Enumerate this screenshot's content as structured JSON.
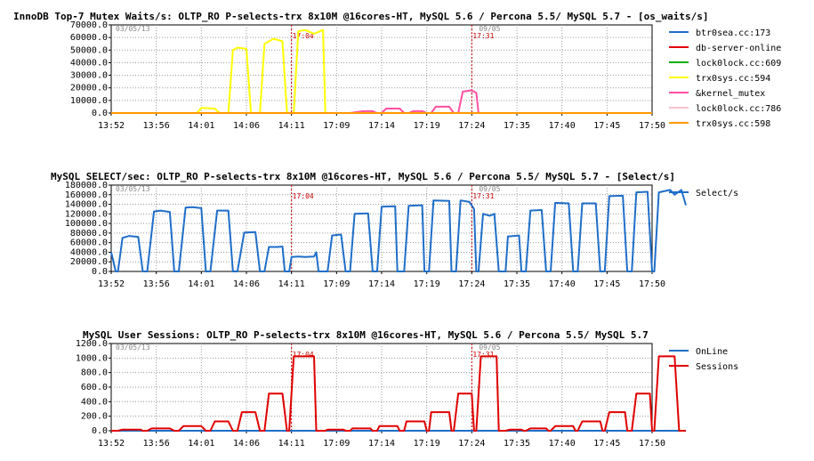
{
  "chart_data": [
    {
      "type": "line",
      "title": "InnoDB Top-7 Mutex Waits/s: OLTP_RO P-selects-trx 8x10M @16cores-HT, MySQL 5.6 / Percona 5.5/ MySQL 5.7 - [os_waits/s]",
      "date_start": "03/05/13",
      "date_end": "09/05",
      "ylim": [
        0,
        70000
      ],
      "yticks": [
        "70000.0",
        "60000.0",
        "50000.0",
        "40000.0",
        "30000.0",
        "20000.0",
        "10000.0",
        "0.0"
      ],
      "xticks": [
        "13:52",
        "13:56",
        "14:01",
        "14:06",
        "14:11",
        "17:09",
        "17:14",
        "17:19",
        "17:24",
        "17:35",
        "17:40",
        "17:45",
        "17:50"
      ],
      "markers": [
        {
          "label": "17:04",
          "at": 4
        },
        {
          "label": "17:31",
          "at": 8
        }
      ],
      "series": [
        {
          "name": "btr0sea.cc:173",
          "color": "#1f6ec9",
          "values": []
        },
        {
          "name": "db-server-online",
          "color": "#e00000",
          "values": []
        },
        {
          "name": "lock0lock.cc:609",
          "color": "#00b000",
          "values": []
        },
        {
          "name": "trx0sys.cc:594",
          "color": "#ffff00",
          "values": [
            [
              0,
              0
            ],
            [
              1.9,
              0
            ],
            [
              2.0,
              4000
            ],
            [
              2.3,
              3500
            ],
            [
              2.4,
              0
            ],
            [
              2.6,
              0
            ],
            [
              2.7,
              50000
            ],
            [
              2.8,
              52000
            ],
            [
              3.0,
              51000
            ],
            [
              3.1,
              0
            ],
            [
              3.3,
              0
            ],
            [
              3.4,
              55000
            ],
            [
              3.6,
              59000
            ],
            [
              3.8,
              57000
            ],
            [
              3.9,
              0
            ],
            [
              4.05,
              0
            ],
            [
              4.15,
              65000
            ],
            [
              4.3,
              66000
            ],
            [
              4.5,
              63000
            ],
            [
              4.7,
              66000
            ],
            [
              4.75,
              0
            ],
            [
              4.9,
              0
            ]
          ]
        },
        {
          "name": "&kernel_mutex",
          "color": "#ff50a0",
          "values": [
            [
              5.3,
              0
            ],
            [
              5.6,
              1500
            ],
            [
              5.8,
              1500
            ],
            [
              5.9,
              0
            ],
            [
              6.0,
              0
            ],
            [
              6.1,
              3500
            ],
            [
              6.4,
              3500
            ],
            [
              6.5,
              0
            ],
            [
              6.6,
              0
            ],
            [
              6.7,
              1500
            ],
            [
              6.9,
              1500
            ],
            [
              7.0,
              0
            ],
            [
              7.1,
              0
            ],
            [
              7.2,
              5000
            ],
            [
              7.5,
              5000
            ],
            [
              7.6,
              0
            ],
            [
              7.7,
              0
            ],
            [
              7.8,
              17000
            ],
            [
              8.0,
              18000
            ],
            [
              8.1,
              16000
            ],
            [
              8.15,
              0
            ]
          ]
        },
        {
          "name": "lock0lock.cc:786",
          "color": "#ffc0d0",
          "values": []
        },
        {
          "name": "trx0sys.cc:598",
          "color": "#ff9900",
          "values": [
            [
              0,
              0
            ],
            [
              12,
              0
            ]
          ]
        }
      ]
    },
    {
      "type": "line",
      "title": "MySQL SELECT/sec: OLTP_RO P-selects-trx 8x10M @16cores-HT, MySQL 5.6 / Percona 5.5/ MySQL 5.7 - [Select/s]",
      "date_start": "03/05/13",
      "date_end": "09/05",
      "ylim": [
        0,
        180000
      ],
      "yticks": [
        "180000.0",
        "160000.0",
        "140000.0",
        "120000.0",
        "100000.0",
        "80000.0",
        "60000.0",
        "40000.0",
        "20000.0",
        "0.0"
      ],
      "xticks": [
        "13:52",
        "13:56",
        "14:01",
        "14:06",
        "14:11",
        "17:09",
        "17:14",
        "17:19",
        "17:24",
        "17:35",
        "17:40",
        "17:45",
        "17:50"
      ],
      "markers": [
        {
          "label": "17:04",
          "at": 4
        },
        {
          "label": "17:31",
          "at": 8
        }
      ],
      "series": [
        {
          "name": "Select/s",
          "color": "#1f6ec9",
          "values": [
            [
              0,
              40000
            ],
            [
              0.1,
              0
            ],
            [
              0.15,
              0
            ],
            [
              0.25,
              70000
            ],
            [
              0.4,
              74000
            ],
            [
              0.6,
              72000
            ],
            [
              0.7,
              0
            ],
            [
              0.8,
              0
            ],
            [
              0.95,
              125000
            ],
            [
              1.1,
              127000
            ],
            [
              1.3,
              124000
            ],
            [
              1.4,
              0
            ],
            [
              1.5,
              0
            ],
            [
              1.65,
              133000
            ],
            [
              1.8,
              134000
            ],
            [
              2.0,
              132000
            ],
            [
              2.1,
              0
            ],
            [
              2.2,
              0
            ],
            [
              2.35,
              127000
            ],
            [
              2.6,
              127000
            ],
            [
              2.7,
              0
            ],
            [
              2.8,
              0
            ],
            [
              2.95,
              81000
            ],
            [
              3.2,
              82000
            ],
            [
              3.3,
              0
            ],
            [
              3.4,
              0
            ],
            [
              3.5,
              51000
            ],
            [
              3.7,
              51000
            ],
            [
              3.8,
              52000
            ],
            [
              3.85,
              0
            ],
            [
              3.9,
              0
            ],
            [
              3.95,
              0
            ],
            [
              4.0,
              30000
            ],
            [
              4.15,
              31000
            ],
            [
              4.3,
              30000
            ],
            [
              4.5,
              31000
            ],
            [
              4.55,
              40000
            ],
            [
              4.6,
              0
            ],
            [
              4.75,
              0
            ],
            [
              4.8,
              0
            ],
            [
              4.9,
              75000
            ],
            [
              5.1,
              77000
            ],
            [
              5.2,
              0
            ],
            [
              5.3,
              0
            ],
            [
              5.4,
              120000
            ],
            [
              5.7,
              121000
            ],
            [
              5.8,
              0
            ],
            [
              5.9,
              0
            ],
            [
              6.0,
              135000
            ],
            [
              6.3,
              136000
            ],
            [
              6.35,
              0
            ],
            [
              6.5,
              0
            ],
            [
              6.6,
              137000
            ],
            [
              6.9,
              138000
            ],
            [
              6.95,
              0
            ],
            [
              7.05,
              0
            ],
            [
              7.15,
              148000
            ],
            [
              7.5,
              147000
            ],
            [
              7.55,
              0
            ],
            [
              7.65,
              0
            ],
            [
              7.75,
              148000
            ],
            [
              7.95,
              145000
            ],
            [
              8.05,
              130000
            ],
            [
              8.1,
              0
            ],
            [
              8.15,
              0
            ],
            [
              8.25,
              120000
            ],
            [
              8.4,
              116000
            ],
            [
              8.5,
              120000
            ],
            [
              8.6,
              0
            ],
            [
              8.75,
              0
            ],
            [
              8.8,
              73000
            ],
            [
              9.05,
              75000
            ],
            [
              9.1,
              0
            ],
            [
              9.2,
              0
            ],
            [
              9.3,
              127000
            ],
            [
              9.55,
              128000
            ],
            [
              9.65,
              0
            ],
            [
              9.75,
              0
            ],
            [
              9.85,
              143000
            ],
            [
              10.15,
              142000
            ],
            [
              10.25,
              0
            ],
            [
              10.35,
              0
            ],
            [
              10.45,
              142000
            ],
            [
              10.75,
              142000
            ],
            [
              10.85,
              0
            ],
            [
              10.95,
              0
            ],
            [
              11.05,
              157000
            ],
            [
              11.35,
              158000
            ],
            [
              11.45,
              0
            ],
            [
              11.55,
              0
            ],
            [
              11.65,
              165000
            ],
            [
              11.9,
              166000
            ],
            [
              12.0,
              0
            ],
            [
              12.05,
              0
            ],
            [
              12.15,
              165000
            ],
            [
              12.4,
              170000
            ],
            [
              12.5,
              160000
            ],
            [
              12.65,
              170000
            ],
            [
              12.75,
              138000
            ]
          ]
        }
      ]
    },
    {
      "type": "line",
      "title": "MySQL User Sessions: OLTP_RO P-selects-trx 8x10M @16cores-HT, MySQL 5.6 / Percona 5.5/ MySQL 5.7",
      "date_start": "03/05/13",
      "date_end": "09/05",
      "ylim": [
        0,
        1200
      ],
      "yticks": [
        "1200.0",
        "1000.0",
        "800.0",
        "600.0",
        "400.0",
        "200.0",
        "0.0"
      ],
      "xticks": [
        "13:52",
        "13:56",
        "14:01",
        "14:06",
        "14:11",
        "17:09",
        "17:14",
        "17:19",
        "17:24",
        "17:35",
        "17:40",
        "17:45",
        "17:50"
      ],
      "markers": [
        {
          "label": "17:04",
          "at": 4
        },
        {
          "label": "17:31",
          "at": 8
        }
      ],
      "series": [
        {
          "name": "OnLine",
          "color": "#1f6ec9",
          "values": [
            [
              0,
              0
            ],
            [
              12.75,
              0
            ]
          ]
        },
        {
          "name": "Sessions",
          "color": "#e00000",
          "values": [
            [
              0,
              0
            ],
            [
              0.15,
              0
            ],
            [
              0.25,
              16
            ],
            [
              0.65,
              16
            ],
            [
              0.7,
              0
            ],
            [
              0.8,
              0
            ],
            [
              0.9,
              32
            ],
            [
              1.3,
              32
            ],
            [
              1.4,
              0
            ],
            [
              1.5,
              0
            ],
            [
              1.6,
              64
            ],
            [
              2.0,
              64
            ],
            [
              2.1,
              0
            ],
            [
              2.2,
              0
            ],
            [
              2.3,
              128
            ],
            [
              2.6,
              128
            ],
            [
              2.7,
              0
            ],
            [
              2.8,
              0
            ],
            [
              2.9,
              256
            ],
            [
              3.2,
              256
            ],
            [
              3.3,
              0
            ],
            [
              3.4,
              0
            ],
            [
              3.5,
              512
            ],
            [
              3.8,
              512
            ],
            [
              3.9,
              0
            ],
            [
              3.95,
              0
            ],
            [
              4.05,
              1024
            ],
            [
              4.5,
              1024
            ],
            [
              4.55,
              0
            ],
            [
              4.75,
              0
            ],
            [
              4.8,
              16
            ],
            [
              5.15,
              16
            ],
            [
              5.2,
              0
            ],
            [
              5.3,
              0
            ],
            [
              5.35,
              32
            ],
            [
              5.75,
              32
            ],
            [
              5.8,
              0
            ],
            [
              5.9,
              0
            ],
            [
              5.95,
              64
            ],
            [
              6.35,
              64
            ],
            [
              6.4,
              0
            ],
            [
              6.5,
              0
            ],
            [
              6.55,
              128
            ],
            [
              6.95,
              128
            ],
            [
              7.0,
              0
            ],
            [
              7.05,
              0
            ],
            [
              7.1,
              256
            ],
            [
              7.5,
              256
            ],
            [
              7.55,
              0
            ],
            [
              7.6,
              0
            ],
            [
              7.7,
              512
            ],
            [
              8.0,
              512
            ],
            [
              8.05,
              0
            ],
            [
              8.1,
              0
            ],
            [
              8.2,
              1024
            ],
            [
              8.55,
              1024
            ],
            [
              8.6,
              0
            ],
            [
              8.75,
              0
            ],
            [
              8.85,
              16
            ],
            [
              9.1,
              16
            ],
            [
              9.15,
              0
            ],
            [
              9.2,
              0
            ],
            [
              9.3,
              32
            ],
            [
              9.65,
              32
            ],
            [
              9.7,
              0
            ],
            [
              9.75,
              0
            ],
            [
              9.85,
              64
            ],
            [
              10.25,
              64
            ],
            [
              10.3,
              0
            ],
            [
              10.35,
              0
            ],
            [
              10.45,
              128
            ],
            [
              10.85,
              128
            ],
            [
              10.9,
              0
            ],
            [
              10.95,
              0
            ],
            [
              11.05,
              256
            ],
            [
              11.4,
              256
            ],
            [
              11.45,
              0
            ],
            [
              11.55,
              0
            ],
            [
              11.65,
              512
            ],
            [
              11.95,
              512
            ],
            [
              12.0,
              0
            ],
            [
              12.05,
              0
            ],
            [
              12.15,
              1024
            ],
            [
              12.5,
              1024
            ],
            [
              12.6,
              0
            ],
            [
              12.75,
              0
            ]
          ]
        }
      ]
    }
  ]
}
